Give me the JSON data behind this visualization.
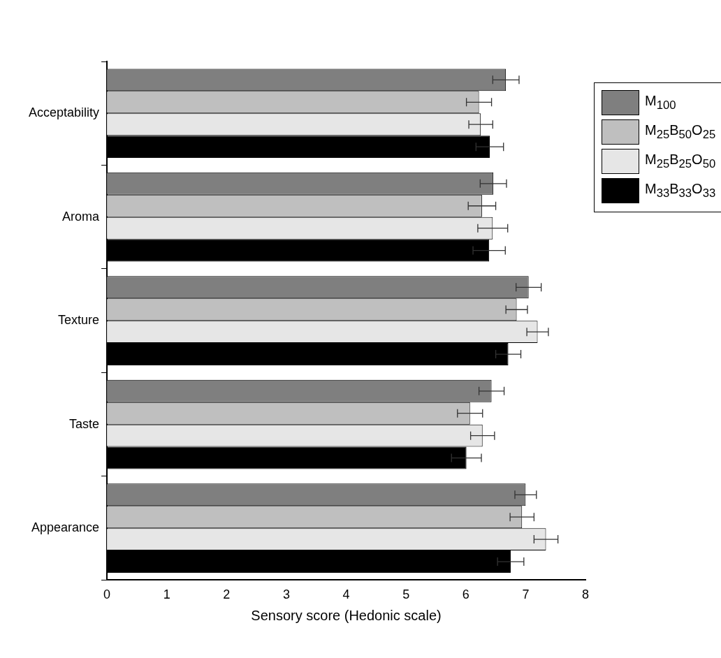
{
  "chart_data": {
    "type": "bar",
    "orientation": "horizontal",
    "xlabel": "Sensory score (Hedonic scale)",
    "categories": [
      "Acceptability",
      "Aroma",
      "Texture",
      "Taste",
      "Appearance"
    ],
    "series": [
      {
        "name": "M$_{100}$",
        "color": "#7f7f7f",
        "values": [
          6.67,
          6.46,
          7.05,
          6.43,
          7.0
        ],
        "errors": [
          0.22,
          0.22,
          0.21,
          0.21,
          0.18
        ]
      },
      {
        "name": "M$_{25}$B$_{50}$O$_{25}$",
        "color": "#bfbfbf",
        "values": [
          6.22,
          6.27,
          6.85,
          6.07,
          6.94
        ],
        "errors": [
          0.21,
          0.23,
          0.18,
          0.21,
          0.2
        ]
      },
      {
        "name": "M$_{25}$B$_{25}$O$_{50}$",
        "color": "#e6e6e6",
        "values": [
          6.25,
          6.45,
          7.2,
          6.28,
          7.34
        ],
        "errors": [
          0.2,
          0.25,
          0.18,
          0.2,
          0.2
        ]
      },
      {
        "name": "M$_{33}$B$_{33}$O$_{33}$",
        "color": "#000000",
        "values": [
          6.4,
          6.39,
          6.71,
          6.01,
          6.75
        ],
        "errors": [
          0.23,
          0.27,
          0.21,
          0.25,
          0.22
        ]
      }
    ],
    "xlim": [
      0,
      8
    ],
    "xticks": [
      0,
      1,
      2,
      3,
      4,
      5,
      6,
      7,
      8
    ],
    "grid": false,
    "legend": "top right"
  }
}
